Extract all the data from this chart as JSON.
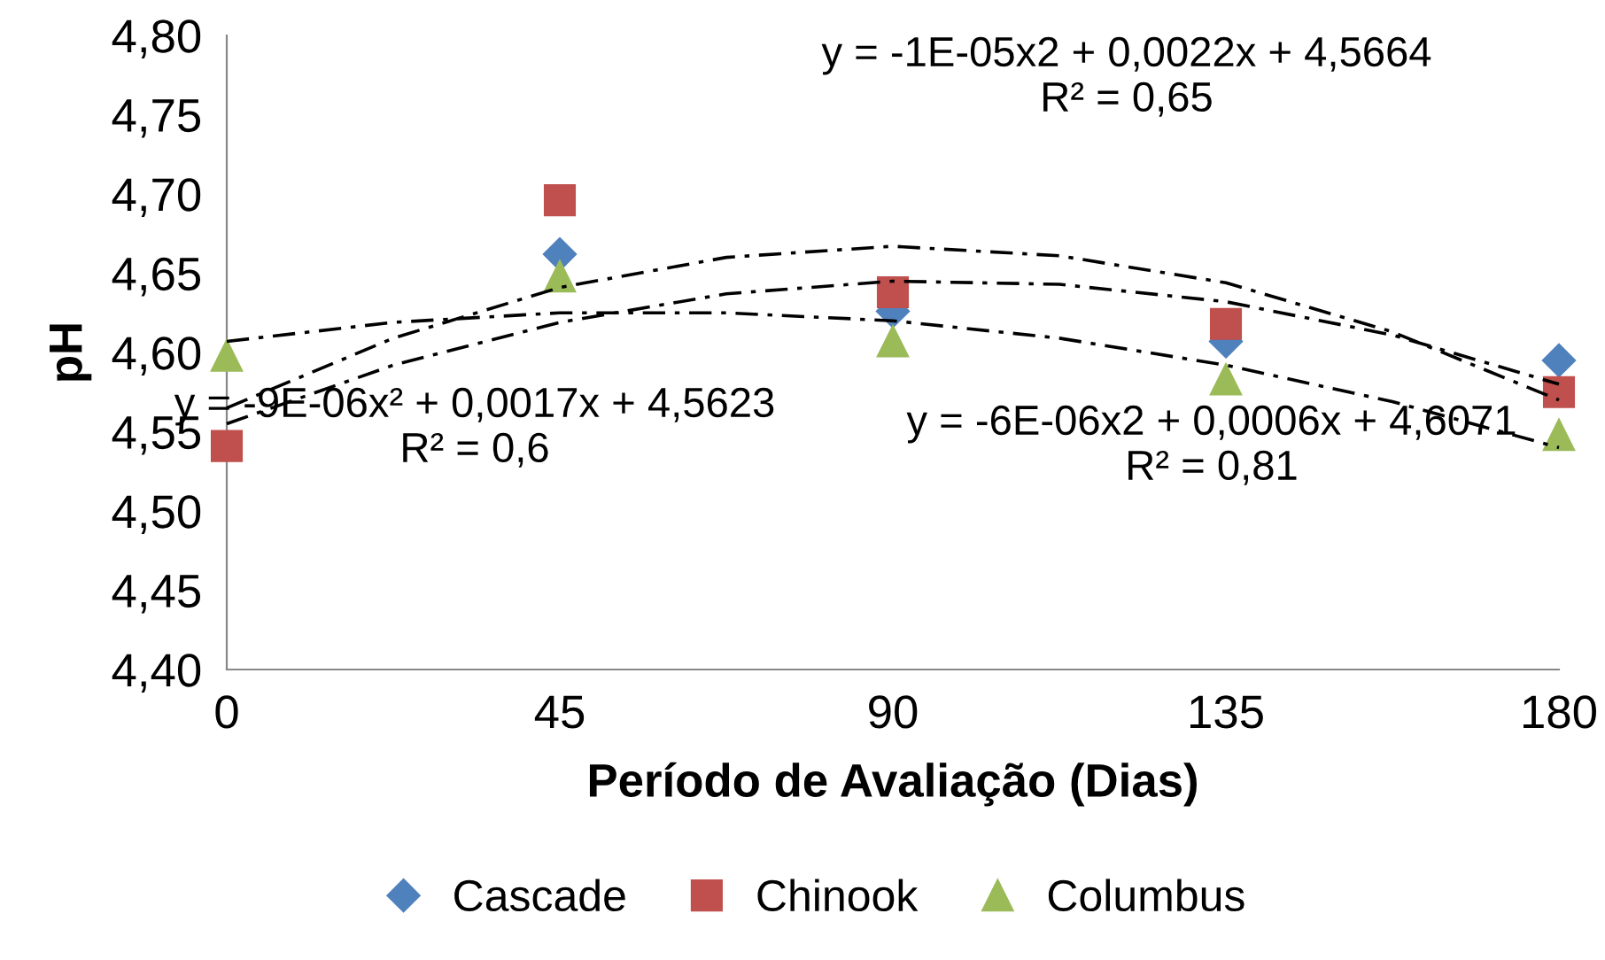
{
  "chart_data": {
    "type": "scatter",
    "xlabel": "Período de Avaliação (Dias)",
    "ylabel": "pH",
    "x": [
      0,
      45,
      90,
      135,
      180
    ],
    "xlim": [
      0,
      180
    ],
    "xticks": [
      0,
      45,
      90,
      135,
      180
    ],
    "ylim": [
      4.4,
      4.8
    ],
    "yticks": [
      {
        "value": 4.4,
        "label": "4,40"
      },
      {
        "value": 4.45,
        "label": "4,45"
      },
      {
        "value": 4.5,
        "label": "4,50"
      },
      {
        "value": 4.55,
        "label": "4,55"
      },
      {
        "value": 4.6,
        "label": "4,60"
      },
      {
        "value": 4.65,
        "label": "4,65"
      },
      {
        "value": 4.7,
        "label": "4,70"
      },
      {
        "value": 4.75,
        "label": "4,75"
      },
      {
        "value": 4.8,
        "label": "4,80"
      }
    ],
    "grid": false,
    "legend": "bottom",
    "series": [
      {
        "name": "Cascade",
        "color": "#4f81bd",
        "marker": "diamond",
        "values": [
          null,
          4.662,
          4.626,
          4.607,
          4.595
        ]
      },
      {
        "name": "Chinook",
        "color": "#c0504d",
        "marker": "square",
        "values": [
          4.541,
          4.696,
          4.638,
          4.618,
          4.575
        ]
      },
      {
        "name": "Columbus",
        "color": "#9bbb59",
        "marker": "triangle",
        "values": [
          4.598,
          4.648,
          4.607,
          4.583,
          4.548
        ]
      },
      {
        "type": "line",
        "color": "#000000",
        "line_style": "dashed",
        "marker": "none",
        "x": [
          0,
          22.5,
          45,
          67.5,
          90,
          112.5,
          135,
          157.5,
          180
        ],
        "values": [
          4.565,
          4.609,
          4.641,
          4.66,
          4.667,
          4.661,
          4.644,
          4.613,
          4.57
        ]
      },
      {
        "type": "line",
        "color": "#000000",
        "line_style": "dashed",
        "marker": "none",
        "x": [
          0,
          22.5,
          45,
          67.5,
          90,
          112.5,
          135,
          157.5,
          180
        ],
        "values": [
          4.555,
          4.592,
          4.619,
          4.637,
          4.645,
          4.643,
          4.632,
          4.611,
          4.58
        ]
      },
      {
        "type": "line",
        "color": "#000000",
        "line_style": "dashed",
        "marker": "none",
        "x": [
          0,
          22.5,
          45,
          67.5,
          90,
          112.5,
          135,
          157.5,
          180
        ],
        "values": [
          4.607,
          4.619,
          4.625,
          4.625,
          4.62,
          4.609,
          4.592,
          4.569,
          4.54
        ]
      }
    ],
    "annotations": [
      "y = -1E-05x2 + 0,0022x + 4,5664\nR² = 0,65",
      "y = -9E-06x² + 0,0017x + 4,5623\nR² = 0,6",
      "y = -6E-06x2 + 0,0006x + 4,6071\nR² = 0,81"
    ]
  }
}
